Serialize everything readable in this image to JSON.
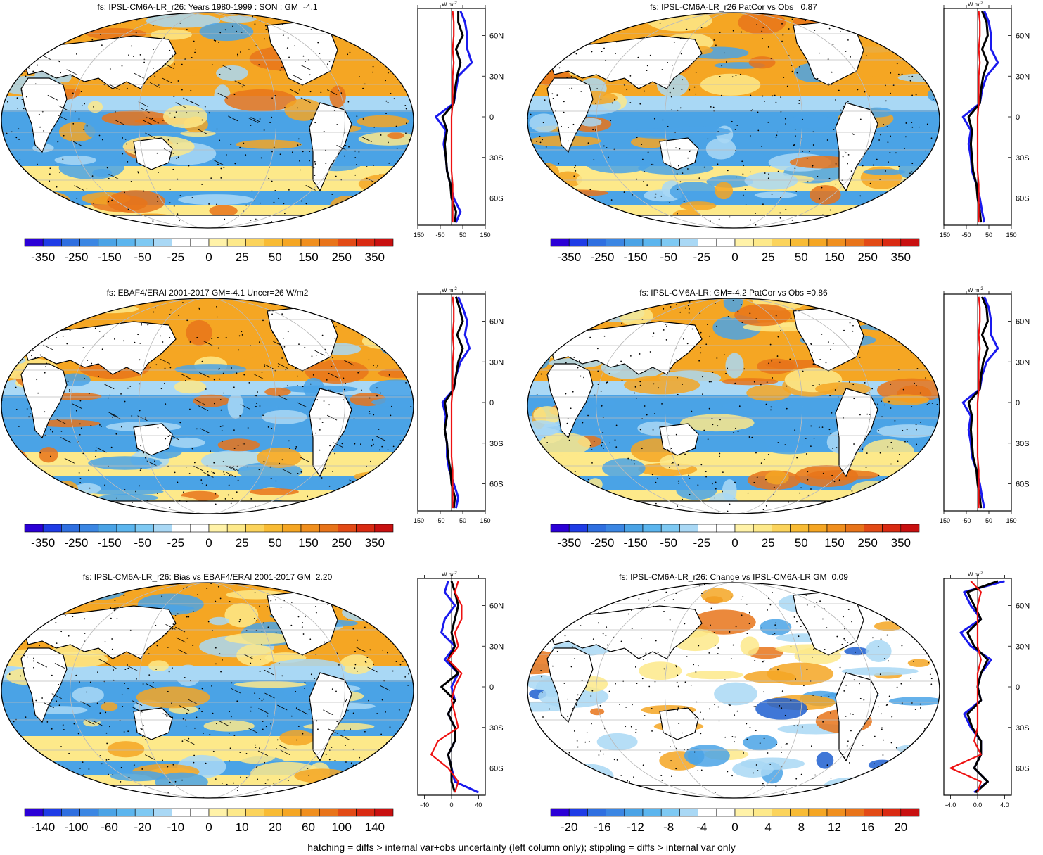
{
  "colors": {
    "ocean_blue": "#4aa3e6",
    "light_blue": "#a9d8f5",
    "deep_blue": "#1f5fd0",
    "yellow": "#fde98a",
    "orange": "#f5a623",
    "dark_orange": "#e8741a",
    "red_line": "#ee1111",
    "blue_line": "#1a1aee",
    "black_line": "#000000",
    "land": "#ffffff",
    "grid": "#bbbbbb"
  },
  "footer": "hatching = diffs > internal var+obs uncertainty (left column only); stippling = diffs > internal var only",
  "palette_main": [
    "#2b00d6",
    "#1f3ce6",
    "#2f6fe0",
    "#3b86e3",
    "#4aa3e6",
    "#5bb5ee",
    "#7ec9f3",
    "#a9d8f5",
    "#ffffff",
    "#ffffff",
    "#fff2a8",
    "#fde98a",
    "#fbd35b",
    "#f8bb34",
    "#f5a623",
    "#f08f1e",
    "#e8741a",
    "#e24a16",
    "#d92a12",
    "#c81010"
  ],
  "panels": [
    {
      "id": "p1",
      "title": "fs: IPSL-CM6A-LR_r26: Years 1980-1999 : SON : GM=-4.1",
      "cbar_labels": [
        "-350",
        "-250",
        "-150",
        "-50",
        "-25",
        "0",
        "25",
        "50",
        "150",
        "250",
        "350"
      ],
      "side_ticks": [
        "-150",
        "-50",
        "50",
        "150"
      ],
      "lat_labels": [
        "60N",
        "30N",
        "0",
        "30S",
        "60S"
      ],
      "unit": "W m",
      "unit_sup": "-2",
      "chart_data": {
        "type": "line",
        "ylabel": "",
        "lat": [
          -78,
          -70,
          -60,
          -50,
          -40,
          -30,
          -20,
          -10,
          0,
          10,
          20,
          30,
          40,
          50,
          60,
          70,
          78
        ],
        "series": [
          {
            "color": "blue",
            "values": [
              20,
              40,
              10,
              -5,
              -20,
              -25,
              -35,
              -25,
              -70,
              10,
              20,
              30,
              90,
              70,
              70,
              60,
              40
            ]
          },
          {
            "color": "black",
            "values": [
              15,
              20,
              0,
              -5,
              -20,
              -25,
              -30,
              -20,
              -40,
              10,
              15,
              25,
              40,
              20,
              50,
              30,
              30
            ]
          },
          {
            "color": "red",
            "values": [
              5,
              5,
              5,
              5,
              0,
              0,
              0,
              0,
              0,
              5,
              5,
              5,
              10,
              5,
              10,
              10,
              5
            ]
          }
        ],
        "xlim": [
          -150,
          150
        ]
      }
    },
    {
      "id": "p2",
      "title": "fs: IPSL-CM6A-LR_r26 PatCor vs Obs =0.87",
      "cbar_labels": [
        "-350",
        "-250",
        "-150",
        "-50",
        "-25",
        "0",
        "25",
        "50",
        "150",
        "250",
        "350"
      ],
      "side_ticks": [
        "-150",
        "-50",
        "50",
        "150"
      ],
      "lat_labels": [
        "60N",
        "30N",
        "0",
        "30S",
        "60S"
      ],
      "unit": "W m",
      "unit_sup": "-2",
      "chart_data": {
        "type": "line",
        "lat": [
          -78,
          -70,
          -60,
          -50,
          -40,
          -30,
          -20,
          -10,
          0,
          10,
          20,
          30,
          40,
          50,
          60,
          70,
          78
        ],
        "series": [
          {
            "color": "blue",
            "values": [
              30,
              20,
              10,
              -5,
              -25,
              -30,
              -40,
              -30,
              -65,
              10,
              20,
              40,
              90,
              60,
              60,
              50,
              30
            ]
          },
          {
            "color": "black",
            "values": [
              15,
              10,
              0,
              -5,
              -20,
              -25,
              -30,
              -25,
              -40,
              10,
              15,
              25,
              45,
              20,
              45,
              40,
              20
            ]
          },
          {
            "color": "red",
            "values": [
              5,
              5,
              5,
              5,
              0,
              0,
              0,
              0,
              0,
              5,
              5,
              5,
              10,
              5,
              10,
              10,
              5
            ]
          }
        ],
        "xlim": [
          -150,
          150
        ]
      }
    },
    {
      "id": "p3",
      "title": "fs: EBAF4/ERAI 2001-2017 GM=-4.1 Uncer=26 W/m2",
      "cbar_labels": [
        "-350",
        "-250",
        "-150",
        "-50",
        "-25",
        "0",
        "25",
        "50",
        "150",
        "250",
        "350"
      ],
      "side_ticks": [
        "-150",
        "-50",
        "50",
        "150"
      ],
      "lat_labels": [
        "60N",
        "30N",
        "0",
        "30S",
        "60S"
      ],
      "unit": "W m",
      "unit_sup": "-2",
      "chart_data": {
        "type": "line",
        "lat": [
          -78,
          -70,
          -60,
          -50,
          -40,
          -30,
          -20,
          -10,
          0,
          10,
          20,
          30,
          40,
          50,
          60,
          70,
          78
        ],
        "series": [
          {
            "color": "blue",
            "values": [
              20,
              30,
              10,
              -10,
              -20,
              -20,
              -30,
              -25,
              -40,
              10,
              20,
              40,
              80,
              60,
              70,
              50,
              30
            ]
          },
          {
            "color": "black",
            "values": [
              10,
              15,
              0,
              -5,
              -15,
              -20,
              -30,
              -20,
              -30,
              10,
              20,
              30,
              50,
              25,
              50,
              35,
              20
            ]
          },
          {
            "color": "red",
            "values": [
              5,
              5,
              5,
              5,
              0,
              0,
              0,
              0,
              0,
              5,
              5,
              5,
              10,
              5,
              10,
              10,
              5
            ]
          }
        ],
        "xlim": [
          -150,
          150
        ]
      }
    },
    {
      "id": "p4",
      "title": "fs: IPSL-CM6A-LR: GM=-4.2 PatCor vs Obs =0.86",
      "cbar_labels": [
        "-350",
        "-250",
        "-150",
        "-50",
        "-25",
        "0",
        "25",
        "50",
        "150",
        "250",
        "350"
      ],
      "side_ticks": [
        "-150",
        "-50",
        "50",
        "150"
      ],
      "lat_labels": [
        "60N",
        "30N",
        "0",
        "30S",
        "60S"
      ],
      "unit": "W m",
      "unit_sup": "-2",
      "chart_data": {
        "type": "line",
        "lat": [
          -78,
          -70,
          -60,
          -50,
          -40,
          -30,
          -20,
          -10,
          0,
          10,
          20,
          30,
          40,
          50,
          60,
          70,
          78
        ],
        "series": [
          {
            "color": "blue",
            "values": [
              30,
              20,
              10,
              -5,
              -25,
              -30,
              -40,
              -30,
              -65,
              10,
              20,
              40,
              90,
              60,
              60,
              50,
              30
            ]
          },
          {
            "color": "black",
            "values": [
              15,
              10,
              0,
              -5,
              -20,
              -25,
              -30,
              -25,
              -40,
              10,
              15,
              25,
              45,
              20,
              45,
              40,
              20
            ]
          },
          {
            "color": "red",
            "values": [
              5,
              5,
              5,
              5,
              0,
              0,
              0,
              0,
              0,
              5,
              5,
              5,
              10,
              5,
              10,
              10,
              5
            ]
          }
        ],
        "xlim": [
          -150,
          150
        ]
      }
    },
    {
      "id": "p5",
      "title": "fs: IPSL-CM6A-LR_r26: Bias vs EBAF4/ERAI 2001-2017  GM=2.20",
      "cbar_labels": [
        "-140",
        "-100",
        "-60",
        "-20",
        "-10",
        "0",
        "10",
        "20",
        "60",
        "100",
        "140"
      ],
      "side_ticks": [
        "-40",
        "0",
        "40"
      ],
      "lat_labels": [
        "60N",
        "30N",
        "0",
        "30S",
        "60S"
      ],
      "unit": "W m",
      "unit_sup": "-2",
      "chart_data": {
        "type": "line",
        "lat": [
          -78,
          -70,
          -60,
          -50,
          -40,
          -30,
          -20,
          -10,
          0,
          10,
          20,
          30,
          40,
          50,
          60,
          70,
          78
        ],
        "series": [
          {
            "color": "blue",
            "values": [
              40,
              5,
              0,
              -5,
              5,
              5,
              -5,
              5,
              0,
              10,
              -10,
              5,
              -15,
              -10,
              5,
              -10,
              -5
            ]
          },
          {
            "color": "black",
            "values": [
              5,
              0,
              0,
              -5,
              5,
              5,
              -5,
              5,
              -15,
              10,
              -5,
              5,
              0,
              5,
              10,
              5,
              0
            ]
          },
          {
            "color": "red",
            "values": [
              5,
              10,
              -5,
              -30,
              -20,
              10,
              5,
              0,
              5,
              15,
              -5,
              10,
              5,
              15,
              15,
              5,
              10
            ]
          }
        ],
        "xlim": [
          -50,
          50
        ]
      }
    },
    {
      "id": "p6",
      "title": "fs: IPSL-CM6A-LR_r26: Change vs IPSL-CM6A-LR GM=0.09",
      "cbar_labels": [
        "-20",
        "-16",
        "-12",
        "-8",
        "-4",
        "0",
        "4",
        "8",
        "12",
        "16",
        "20"
      ],
      "side_ticks": [
        "-4.0",
        "0.0",
        "4.0"
      ],
      "lat_labels": [
        "60N",
        "30N",
        "0",
        "30S",
        "60S"
      ],
      "unit": "W m",
      "unit_sup": "-2",
      "chart_data": {
        "type": "line",
        "lat": [
          -78,
          -70,
          -60,
          -50,
          -40,
          -30,
          -20,
          -10,
          0,
          10,
          20,
          30,
          40,
          50,
          60,
          70,
          78
        ],
        "series": [
          {
            "color": "blue",
            "values": [
              -0.5,
              1.5,
              -0.5,
              0.5,
              0.5,
              -1,
              -2,
              0.5,
              0,
              0.5,
              2,
              -1,
              -2.5,
              0.5,
              -1,
              -2,
              4
            ]
          },
          {
            "color": "black",
            "values": [
              -0.3,
              1.5,
              -0.5,
              0.5,
              0.5,
              -0.8,
              -1.5,
              0.5,
              0,
              0.5,
              1.5,
              -0.5,
              -1.5,
              0.5,
              -0.5,
              -1.5,
              3
            ]
          },
          {
            "color": "red",
            "values": [
              0,
              0.5,
              -4,
              0.5,
              -0.5,
              0,
              0,
              0,
              0,
              0,
              0.5,
              0,
              0,
              0,
              0,
              0.5,
              -1
            ]
          }
        ],
        "xlim": [
          -5,
          5
        ]
      }
    }
  ]
}
